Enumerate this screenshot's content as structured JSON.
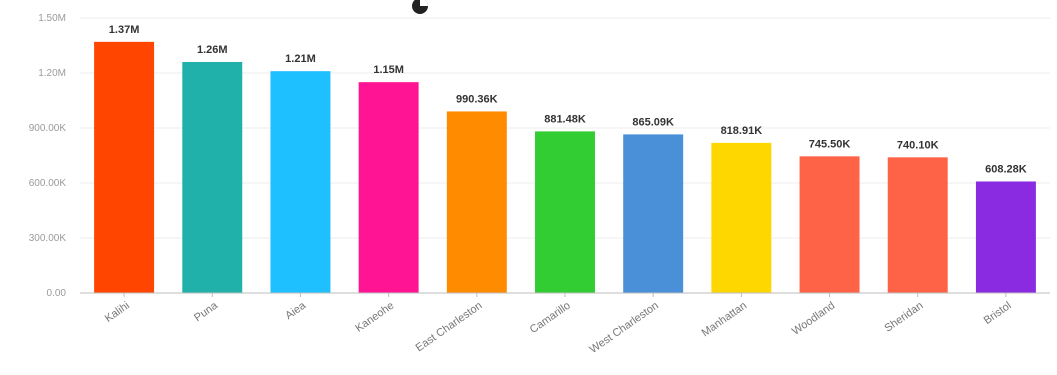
{
  "chart_data": {
    "type": "bar",
    "categories": [
      "Kalihi",
      "Puna",
      "Aiea",
      "Kaneohe",
      "East Charleston",
      "Camarillo",
      "West Charleston",
      "Manhattan",
      "Woodland",
      "Sheridan",
      "Bristol"
    ],
    "values": [
      1370000,
      1260000,
      1210000,
      1150000,
      990360,
      881480,
      865090,
      818910,
      745500,
      740100,
      608280
    ],
    "data_labels": [
      "1.37M",
      "1.26M",
      "1.21M",
      "1.15M",
      "990.36K",
      "881.48K",
      "865.09K",
      "818.91K",
      "745.50K",
      "740.10K",
      "608.28K"
    ],
    "colors": [
      "#ff4500",
      "#20b2aa",
      "#1ec0ff",
      "#ff1493",
      "#ff8c00",
      "#32cd32",
      "#4a90d9",
      "#ffd700",
      "#ff6347",
      "#ff6347",
      "#8a2be2"
    ],
    "yticks": [
      0,
      300000,
      600000,
      900000,
      1200000,
      1500000
    ],
    "ytick_labels": [
      "0.00",
      "300.00K",
      "600.00K",
      "900.00K",
      "1.20M",
      "1.50M"
    ],
    "ylim": [
      0,
      1500000
    ],
    "grid": true,
    "title": "",
    "xlabel": "",
    "ylabel": ""
  },
  "title_icon": "pie-chart-icon"
}
